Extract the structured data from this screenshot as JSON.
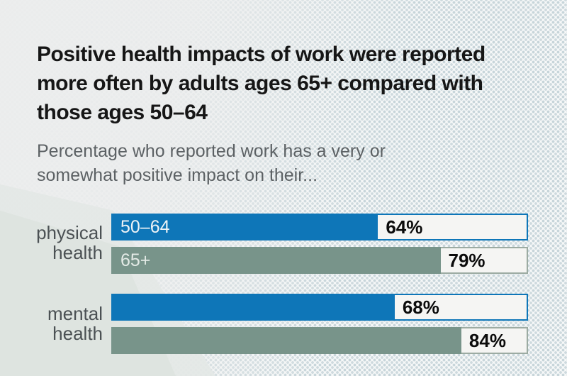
{
  "header": {
    "title_lines": [
      "Positive health impacts of work were reported",
      "more often by adults ages 65+ compared with",
      "those ages 50–64"
    ],
    "subtitle_lines": [
      "Percentage who reported work has a very or",
      "somewhat positive impact on their..."
    ]
  },
  "colors": {
    "bar_blue": "#0e76b8",
    "bar_sage": "#78948a",
    "value_box_bg": "#f5f5f3",
    "value_box_border_sage": "#9caba2",
    "title_text": "#161616",
    "subtitle_text": "#5c6164",
    "category_text": "#4b5154",
    "background_dot": "#c7d5da",
    "wedge": "#dde4df"
  },
  "group_labels": [
    {
      "lines": [
        "physical",
        "health"
      ]
    },
    {
      "lines": [
        "mental",
        "health"
      ]
    }
  ],
  "chart_data": {
    "type": "bar",
    "orientation": "horizontal",
    "categories": [
      "physical health",
      "mental health"
    ],
    "series": [
      {
        "name": "50–64",
        "color": "#0e76b8",
        "values": [
          64,
          68
        ]
      },
      {
        "name": "65+",
        "color": "#78948a",
        "values": [
          79,
          84
        ]
      }
    ],
    "value_suffix": "%",
    "xlim": [
      0,
      100
    ],
    "grid": false,
    "legend_position": "in-bar labels on first category group only",
    "rows": [
      {
        "category": "physical health",
        "series": "50–64",
        "value": 64,
        "display": "64%",
        "series_label": "50–64",
        "color_key": "blue"
      },
      {
        "category": "physical health",
        "series": "65+",
        "value": 79,
        "display": "79%",
        "series_label": "65+",
        "color_key": "sage"
      },
      {
        "category": "mental health",
        "series": "50–64",
        "value": 68,
        "display": "68%",
        "series_label": "",
        "color_key": "blue"
      },
      {
        "category": "mental health",
        "series": "65+",
        "value": 84,
        "display": "84%",
        "series_label": "",
        "color_key": "sage"
      }
    ]
  }
}
